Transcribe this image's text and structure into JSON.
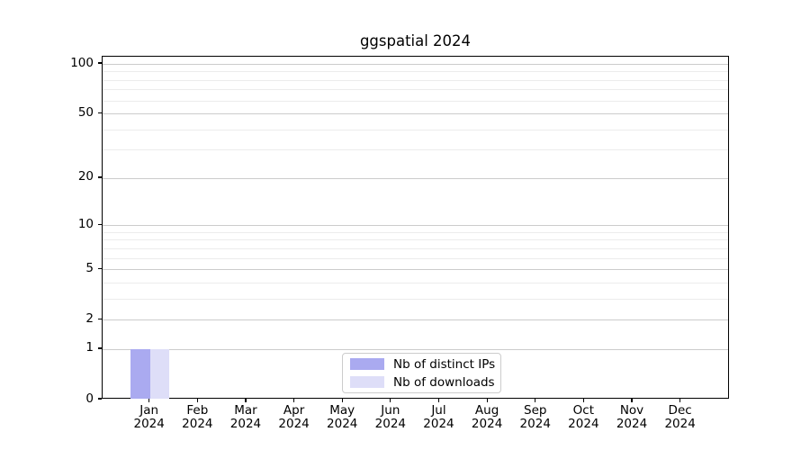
{
  "title": "ggspatial 2024",
  "colors": {
    "bar_distinct_ips": "#aaaaf0",
    "bar_downloads": "#dedef8",
    "grid_major": "#cccccc",
    "grid_minor": "#ececec",
    "spine": "#000000",
    "legend_border": "#cccccc",
    "text": "#000000"
  },
  "legend": {
    "position": "bottom-center-inside",
    "items": [
      {
        "label": "Nb of distinct IPs"
      },
      {
        "label": "Nb of downloads"
      }
    ]
  },
  "chart_data": {
    "type": "bar",
    "title": "ggspatial 2024",
    "xlabel": "",
    "ylabel": "",
    "categories": [
      "Jan 2024",
      "Feb 2024",
      "Mar 2024",
      "Apr 2024",
      "May 2024",
      "Jun 2024",
      "Jul 2024",
      "Aug 2024",
      "Sep 2024",
      "Oct 2024",
      "Nov 2024",
      "Dec 2024"
    ],
    "x_tick_lines": [
      [
        "Jan",
        "2024"
      ],
      [
        "Feb",
        "2024"
      ],
      [
        "Mar",
        "2024"
      ],
      [
        "Apr",
        "2024"
      ],
      [
        "May",
        "2024"
      ],
      [
        "Jun",
        "2024"
      ],
      [
        "Jul",
        "2024"
      ],
      [
        "Aug",
        "2024"
      ],
      [
        "Sep",
        "2024"
      ],
      [
        "Oct",
        "2024"
      ],
      [
        "Nov",
        "2024"
      ],
      [
        "Dec",
        "2024"
      ]
    ],
    "series": [
      {
        "name": "Nb of distinct IPs",
        "color": "#aaaaf0",
        "values": [
          1,
          0,
          0,
          0,
          0,
          0,
          0,
          0,
          0,
          0,
          0,
          0
        ]
      },
      {
        "name": "Nb of downloads",
        "color": "#dedef8",
        "values": [
          1,
          0,
          0,
          0,
          0,
          0,
          0,
          0,
          0,
          0,
          0,
          0
        ]
      }
    ],
    "y_scale": "log1p",
    "ylim": [
      0,
      100
    ],
    "y_major_ticks": [
      0,
      1,
      2,
      5,
      10,
      20,
      50,
      100
    ],
    "y_minor_ticks": [
      3,
      4,
      6,
      7,
      8,
      9,
      30,
      40,
      60,
      70,
      80,
      90
    ],
    "grid": "horizontal-only",
    "legend_entries": [
      "Nb of distinct IPs",
      "Nb of downloads"
    ]
  }
}
